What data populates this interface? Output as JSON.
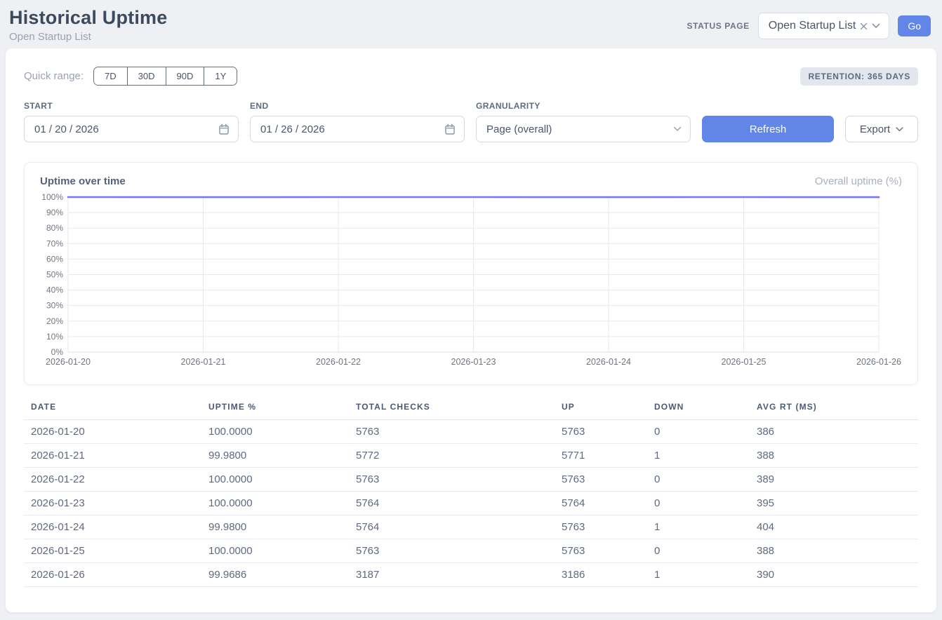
{
  "header": {
    "title": "Historical Uptime",
    "subtitle": "Open Startup List",
    "status_page_label": "STATUS PAGE",
    "status_page_value": "Open Startup List",
    "go_label": "Go"
  },
  "filters": {
    "quick_range_label": "Quick range:",
    "quick_ranges": [
      "7D",
      "30D",
      "90D",
      "1Y"
    ],
    "retention_badge": "RETENTION: 365 DAYS",
    "start_label": "START",
    "start_value": "01 / 20 / 2026",
    "end_label": "END",
    "end_value": "01 / 26 / 2026",
    "granularity_label": "GRANULARITY",
    "granularity_value": "Page (overall)",
    "refresh_label": "Refresh",
    "export_label": "Export"
  },
  "chart": {
    "title": "Uptime over time",
    "legend": "Overall uptime (%)"
  },
  "chart_data": {
    "type": "line",
    "title": "Uptime over time",
    "x": [
      "2026-01-20",
      "2026-01-21",
      "2026-01-22",
      "2026-01-23",
      "2026-01-24",
      "2026-01-25",
      "2026-01-26"
    ],
    "series": [
      {
        "name": "Overall uptime (%)",
        "values": [
          100.0,
          99.98,
          100.0,
          100.0,
          99.98,
          100.0,
          99.9686
        ]
      }
    ],
    "ylim": [
      0,
      100
    ],
    "y_ticks": [
      0,
      10,
      20,
      30,
      40,
      50,
      60,
      70,
      80,
      90,
      100
    ],
    "y_tick_suffix": "%",
    "grid": true,
    "line_color": "#7477ee",
    "legend_position": "top-right"
  },
  "table": {
    "columns": [
      "DATE",
      "UPTIME %",
      "TOTAL CHECKS",
      "UP",
      "DOWN",
      "AVG RT (MS)"
    ],
    "rows": [
      [
        "2026-01-20",
        "100.0000",
        "5763",
        "5763",
        "0",
        "386"
      ],
      [
        "2026-01-21",
        "99.9800",
        "5772",
        "5771",
        "1",
        "388"
      ],
      [
        "2026-01-22",
        "100.0000",
        "5763",
        "5763",
        "0",
        "389"
      ],
      [
        "2026-01-23",
        "100.0000",
        "5764",
        "5764",
        "0",
        "395"
      ],
      [
        "2026-01-24",
        "99.9800",
        "5764",
        "5763",
        "1",
        "404"
      ],
      [
        "2026-01-25",
        "100.0000",
        "5763",
        "5763",
        "0",
        "388"
      ],
      [
        "2026-01-26",
        "99.9686",
        "3187",
        "3186",
        "1",
        "390"
      ]
    ]
  },
  "colors": {
    "accent_blue": "#6285e8",
    "line_indigo": "#7477ee",
    "grid_line": "#e7e9ed",
    "axis_line": "#d8dce2",
    "axis_text": "#6e7580"
  }
}
